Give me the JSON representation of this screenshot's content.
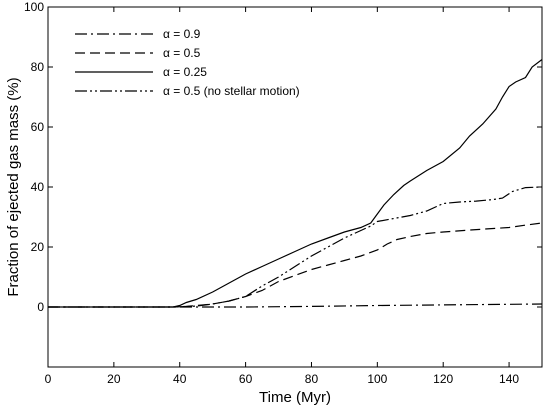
{
  "chart_data": {
    "type": "line",
    "title": "",
    "xlabel": "Time (Myr)",
    "ylabel": "Fraction of ejected gas mass (%)",
    "xlim": [
      0,
      150
    ],
    "ylim": [
      -20,
      100
    ],
    "xticks": [
      0,
      20,
      40,
      60,
      80,
      100,
      120,
      140
    ],
    "yticks": [
      0,
      20,
      40,
      60,
      80,
      100
    ],
    "grid": false,
    "legend_placement": "top-left",
    "series": [
      {
        "name": "α = 0.9",
        "dash": "dash-dot",
        "x": [
          0,
          40,
          60,
          80,
          100,
          120,
          140,
          150
        ],
        "y": [
          0,
          0,
          0,
          0.2,
          0.5,
          0.7,
          0.9,
          1.0
        ]
      },
      {
        "name": "α = 0.5",
        "dash": "dashed",
        "x": [
          0,
          38,
          42,
          46,
          50,
          55,
          60,
          65,
          70,
          75,
          80,
          85,
          90,
          95,
          100,
          103,
          106,
          110,
          115,
          120,
          130,
          140,
          145,
          150
        ],
        "y": [
          0,
          0,
          0.2,
          0.6,
          1.0,
          2.0,
          3.5,
          5.5,
          8.5,
          10.5,
          12.5,
          14.0,
          15.5,
          17.0,
          19.0,
          21.0,
          22.5,
          23.5,
          24.5,
          25.0,
          25.8,
          26.5,
          27.3,
          28.0
        ]
      },
      {
        "name": "α = 0.25",
        "dash": "solid",
        "x": [
          0,
          38,
          40,
          42,
          45,
          50,
          55,
          60,
          65,
          70,
          75,
          80,
          85,
          90,
          95,
          98,
          100,
          102,
          105,
          108,
          110,
          115,
          120,
          125,
          128,
          132,
          136,
          138,
          140,
          142,
          145,
          147,
          150
        ],
        "y": [
          0,
          0,
          0.5,
          1.5,
          2.5,
          5.0,
          8.0,
          11.0,
          13.5,
          16.0,
          18.5,
          21.0,
          23.0,
          25.0,
          26.5,
          28.0,
          31.0,
          34.0,
          37.5,
          40.5,
          42.0,
          45.5,
          48.5,
          53.0,
          57.0,
          61.0,
          66.0,
          70.0,
          73.5,
          75.0,
          76.5,
          80.0,
          82.5
        ]
      },
      {
        "name": "α = 0.5 (no stellar motion)",
        "dash": "dash-dot-dot",
        "x": [
          0,
          38,
          45,
          50,
          55,
          60,
          65,
          70,
          75,
          80,
          85,
          90,
          95,
          98,
          100,
          105,
          110,
          115,
          118,
          120,
          125,
          130,
          135,
          138,
          141,
          145,
          150
        ],
        "y": [
          0,
          0,
          0.3,
          1.0,
          2.0,
          3.5,
          7.0,
          10.0,
          13.5,
          17.0,
          20.0,
          23.0,
          25.5,
          27.0,
          28.5,
          29.5,
          30.5,
          32.0,
          33.5,
          34.5,
          35.0,
          35.3,
          35.8,
          36.3,
          38.5,
          39.8,
          40.0
        ]
      }
    ]
  }
}
